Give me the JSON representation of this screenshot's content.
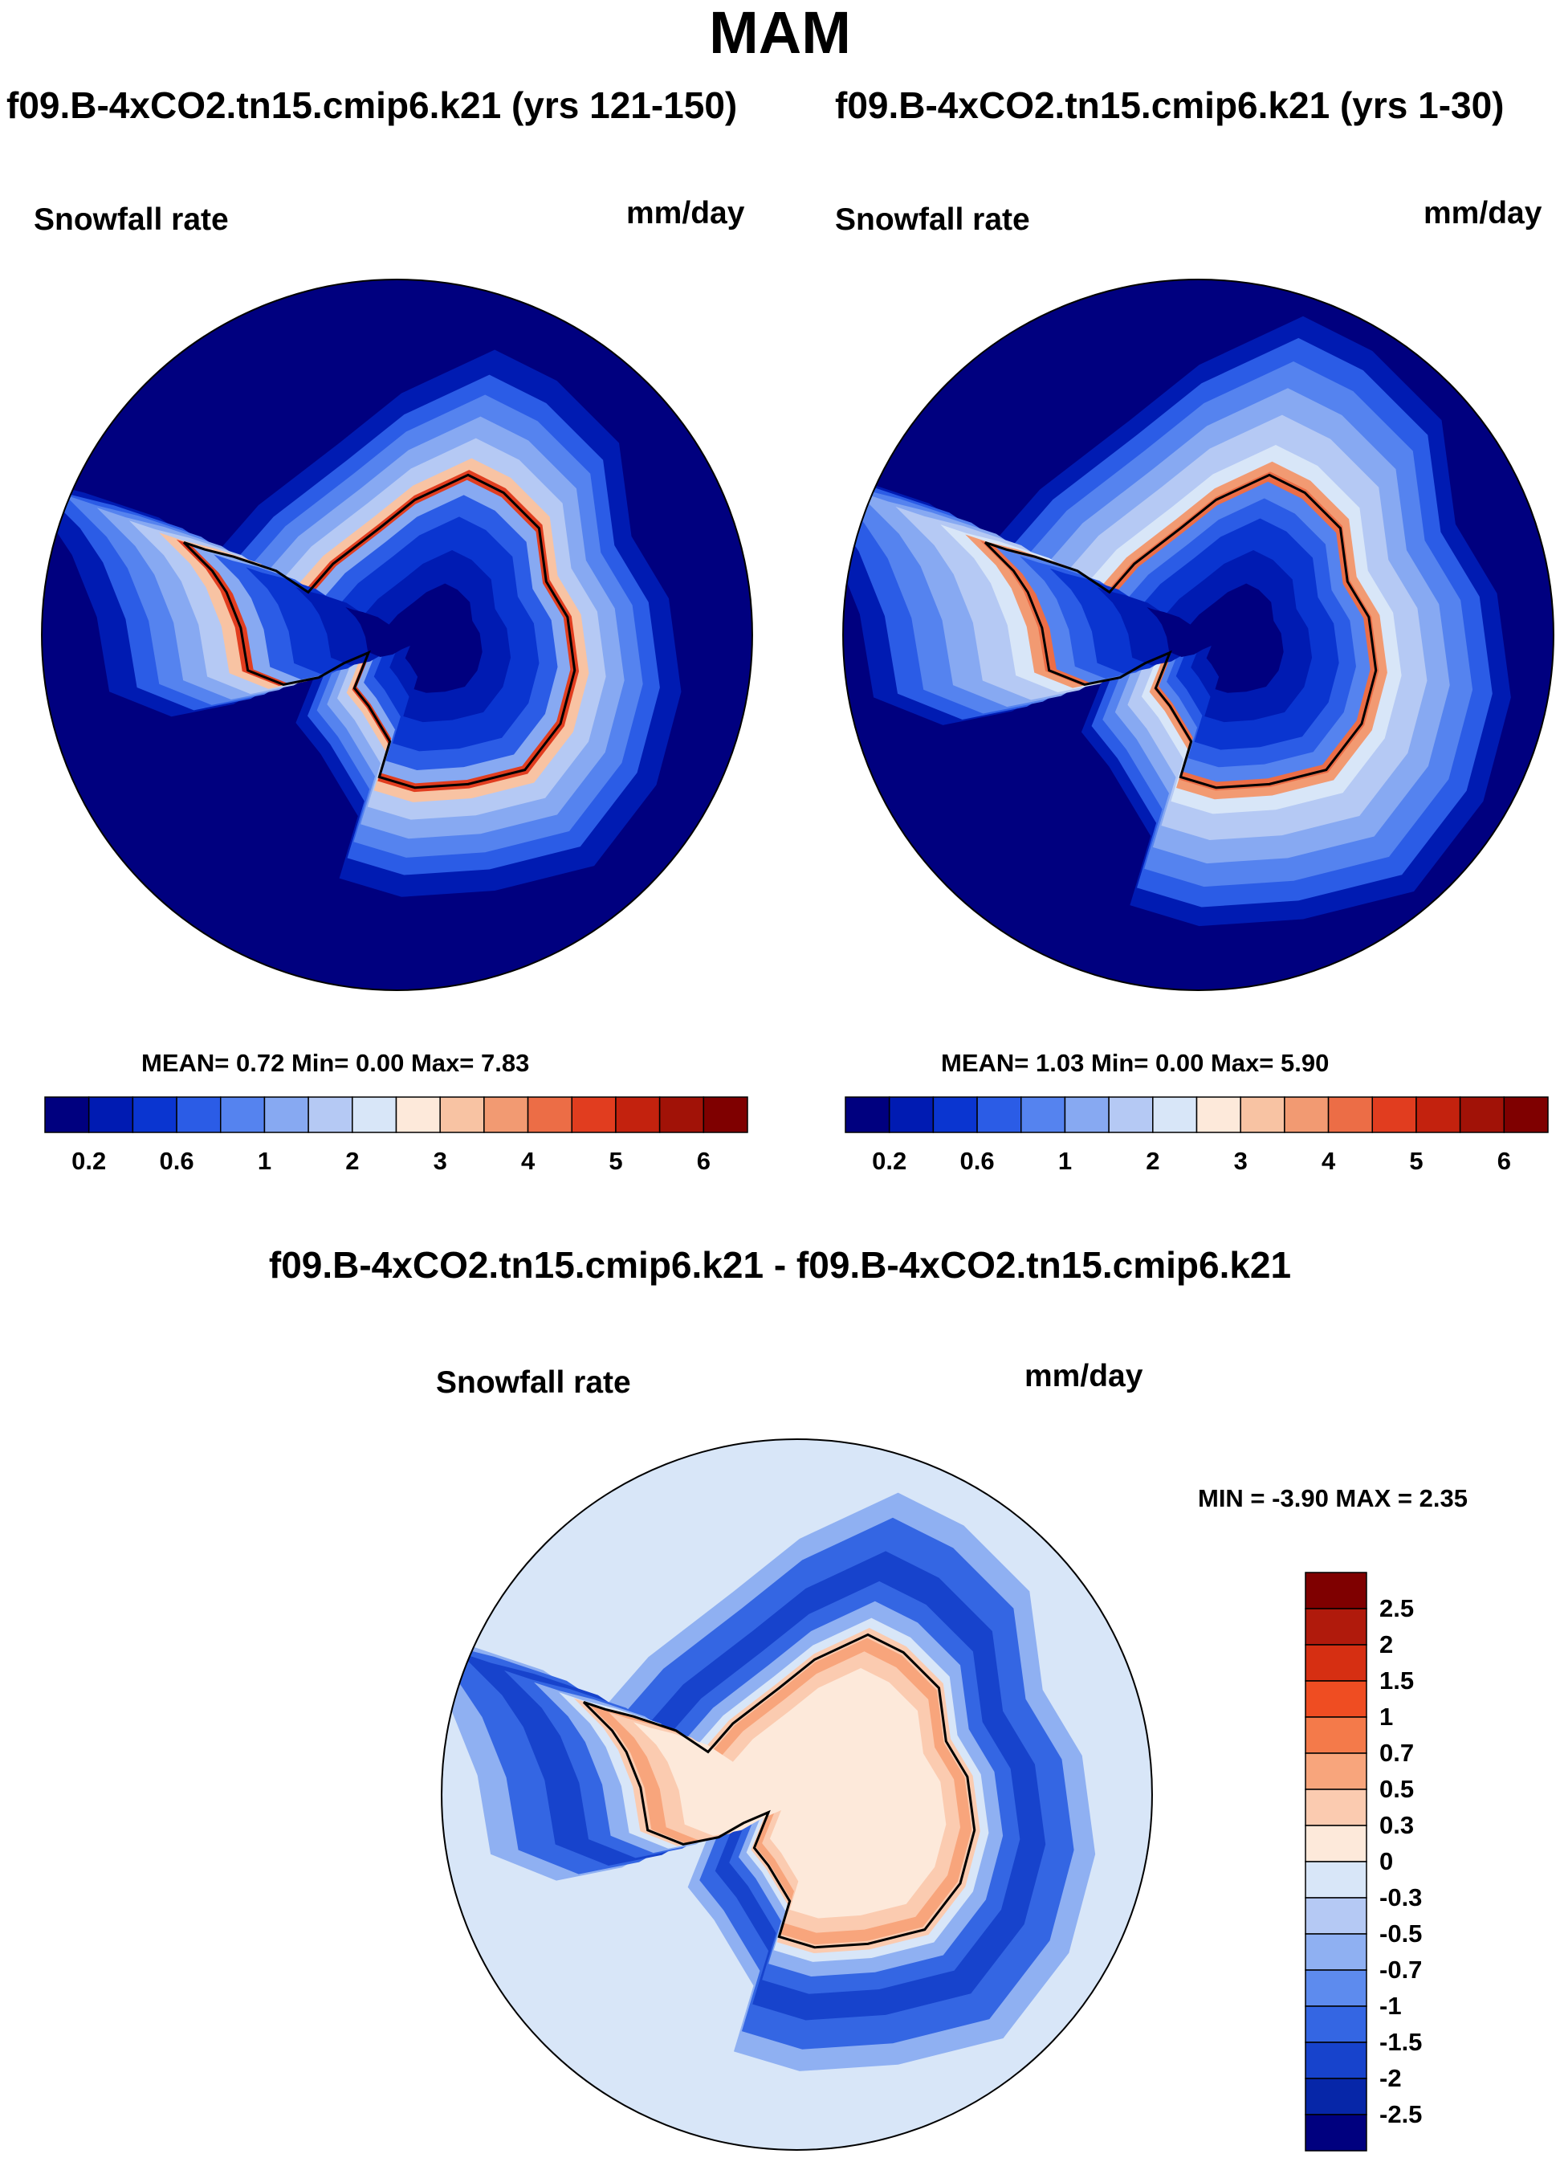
{
  "title": "MAM",
  "panels": [
    {
      "title": "f09.B-4xCO2.tn15.cmip6.k21 (yrs 121-150)",
      "variable": "Snowfall rate",
      "units": "mm/day",
      "stats": "MEAN=   0.72  Min=   0.00  Max=   7.83"
    },
    {
      "title": "f09.B-4xCO2.tn15.cmip6.k21 (yrs 1-30)",
      "variable": "Snowfall rate",
      "units": "mm/day",
      "stats": "MEAN=   1.03  Min=   0.00  Max=   5.90"
    },
    {
      "title": "f09.B-4xCO2.tn15.cmip6.k21 - f09.B-4xCO2.tn15.cmip6.k21",
      "variable": "Snowfall rate",
      "units": "mm/day",
      "stats": "MIN =  -3.90 MAX =   2.35"
    }
  ],
  "chart_data": [
    {
      "type": "heatmap",
      "title": "f09.B-4xCO2.tn15.cmip6.k21 (yrs 121-150)",
      "subtitle": "Snowfall rate",
      "units": "mm/day",
      "projection": "south polar stereographic",
      "mean": 0.72,
      "min": 0.0,
      "max": 7.83,
      "levels": [
        0.2,
        0.4,
        0.6,
        0.8,
        1,
        1.5,
        2,
        2.5,
        3,
        3.5,
        4,
        4.5,
        5,
        5.5,
        6
      ],
      "tick_labels": [
        "0.2",
        "0.6",
        "1",
        "2",
        "3",
        "4",
        "5",
        "6"
      ],
      "colors": [
        "#00007f",
        "#001bb2",
        "#0a35d0",
        "#2b5ce6",
        "#5583ef",
        "#87a9f2",
        "#b5c9f4",
        "#d8e6f8",
        "#fde9da",
        "#f8c3a3",
        "#f29a72",
        "#ec6d46",
        "#e13d1f",
        "#c3220e",
        "#a11207",
        "#7f0000"
      ]
    },
    {
      "type": "heatmap",
      "title": "f09.B-4xCO2.tn15.cmip6.k21 (yrs 1-30)",
      "subtitle": "Snowfall rate",
      "units": "mm/day",
      "projection": "south polar stereographic",
      "mean": 1.03,
      "min": 0.0,
      "max": 5.9,
      "levels": [
        0.2,
        0.4,
        0.6,
        0.8,
        1,
        1.5,
        2,
        2.5,
        3,
        3.5,
        4,
        4.5,
        5,
        5.5,
        6
      ],
      "tick_labels": [
        "0.2",
        "0.6",
        "1",
        "2",
        "3",
        "4",
        "5",
        "6"
      ],
      "colors": [
        "#00007f",
        "#001bb2",
        "#0a35d0",
        "#2b5ce6",
        "#5583ef",
        "#87a9f2",
        "#b5c9f4",
        "#d8e6f8",
        "#fde9da",
        "#f8c3a3",
        "#f29a72",
        "#ec6d46",
        "#e13d1f",
        "#c3220e",
        "#a11207",
        "#7f0000"
      ]
    },
    {
      "type": "heatmap",
      "title": "f09.B-4xCO2.tn15.cmip6.k21 - f09.B-4xCO2.tn15.cmip6.k21",
      "subtitle": "Snowfall rate",
      "units": "mm/day",
      "projection": "south polar stereographic",
      "min": -3.9,
      "max": 2.35,
      "levels": [
        -2.5,
        -2,
        -1.5,
        -1,
        -0.7,
        -0.5,
        -0.3,
        0,
        0.3,
        0.5,
        0.7,
        1,
        1.5,
        2,
        2.5
      ],
      "tick_labels": [
        "2.5",
        "2",
        "1.5",
        "1",
        "0.7",
        "0.5",
        "0.3",
        "0",
        "-0.3",
        "-0.5",
        "-0.7",
        "-1",
        "-1.5",
        "-2",
        "-2.5"
      ],
      "colors": [
        "#7f0000",
        "#b01a0c",
        "#d62f12",
        "#ef4d22",
        "#f47a4a",
        "#f8a57c",
        "#fbcbb0",
        "#fde9da",
        "#d8e6f8",
        "#b5c9f4",
        "#8fb0f2",
        "#5d8bee",
        "#3466e3",
        "#1743cc",
        "#0626a8",
        "#00007f"
      ]
    }
  ]
}
